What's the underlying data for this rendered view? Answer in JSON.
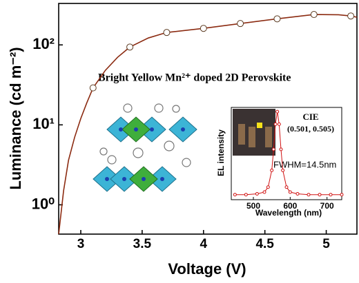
{
  "chart_data": [
    {
      "type": "line",
      "x_label": "Voltage (V)",
      "y_label": "Luminance (cd m⁻²)",
      "log_y": true,
      "annotation": "Bright Yellow Mn²⁺ doped 2D Perovskite",
      "xlim": [
        2.82,
        5.25
      ],
      "xticks": [
        3.0,
        3.5,
        4.0,
        4.5,
        5.0
      ],
      "ylim": [
        0.43,
        330
      ],
      "yticks": [
        {
          "value": 1,
          "label": "10⁰"
        },
        {
          "value": 10,
          "label": "10¹"
        },
        {
          "value": 100,
          "label": "10²"
        }
      ],
      "series": [
        {
          "color": "#8b2a10",
          "marker": false,
          "x": [
            2.82,
            2.86,
            2.9,
            2.95,
            3.0,
            3.05,
            3.1,
            3.2,
            3.3,
            3.4,
            3.55,
            3.7,
            4.0,
            4.3,
            4.6,
            4.9,
            5.1,
            5.2,
            5.25
          ],
          "values": [
            0.43,
            1.5,
            3.6,
            7,
            12,
            19,
            29,
            48,
            70,
            94,
            122,
            143,
            161,
            185,
            212,
            240,
            238,
            230,
            222
          ]
        },
        {
          "color": "#5a3a20",
          "marker": true,
          "line": false,
          "x": [
            3.1,
            3.4,
            3.7,
            4.0,
            4.3,
            4.6,
            4.9,
            5.2
          ],
          "values": [
            29,
            94,
            143,
            161,
            185,
            212,
            240,
            230
          ]
        }
      ]
    },
    {
      "type": "line",
      "x_label": "Wavelength (nm)",
      "y_label": "EL intensity",
      "cie_label": "CIE",
      "cie_value": "(0.501, 0.505)",
      "fwhm": "FWHM=14.5nm",
      "xlim": [
        440,
        740
      ],
      "xticks": [
        500,
        600,
        700
      ],
      "ylim": [
        -0.05,
        1.05
      ],
      "series": [
        {
          "color": "#d01010",
          "marker": true,
          "line": true,
          "x": [
            450,
            480,
            510,
            530,
            540,
            550,
            555,
            560,
            565,
            570,
            575,
            580,
            590,
            600,
            620,
            650,
            680,
            710,
            740
          ],
          "values": [
            0.01,
            0.01,
            0.02,
            0.04,
            0.1,
            0.3,
            0.55,
            0.85,
            1,
            0.85,
            0.55,
            0.3,
            0.1,
            0.04,
            0.02,
            0.01,
            0.01,
            0.01,
            0.01
          ]
        }
      ]
    }
  ]
}
